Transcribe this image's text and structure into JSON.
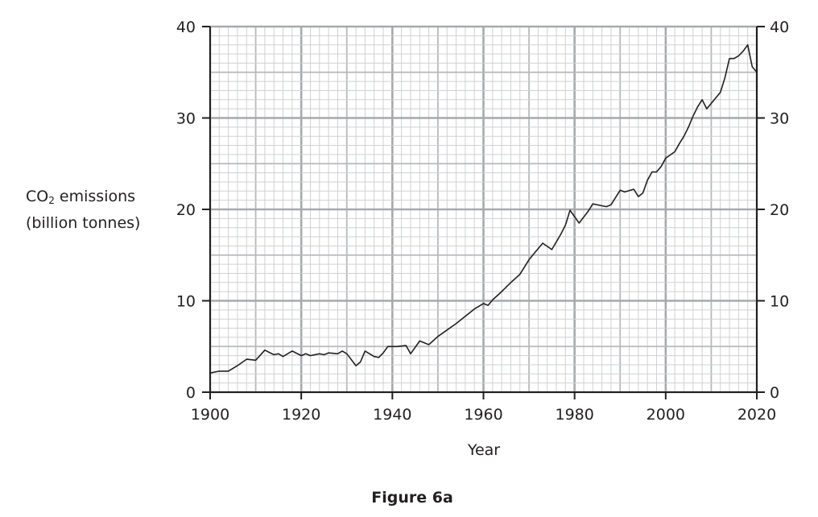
{
  "figure": {
    "caption": "Figure 6a"
  },
  "axes": {
    "xlabel": "Year",
    "ylabel_line1_pre": "CO",
    "ylabel_line1_sub": "2",
    "ylabel_line1_post": " emissions",
    "ylabel_line2": "(billion tonnes)"
  },
  "chart_data": {
    "type": "line",
    "title": "Figure 6a",
    "xlabel": "Year",
    "ylabel": "CO2 emissions (billion tonnes)",
    "xlim": [
      1900,
      2020
    ],
    "ylim": [
      0,
      40
    ],
    "x_ticks": [
      1900,
      1920,
      1940,
      1960,
      1980,
      2000,
      2020
    ],
    "y_ticks": [
      0,
      10,
      20,
      30,
      40
    ],
    "grid": true,
    "grid_minor_x_step": 2,
    "grid_minor_y_step": 1,
    "right_axis_duplicate": true,
    "legend": null,
    "series": [
      {
        "name": "CO2 emissions",
        "color": "#231f20",
        "x": [
          1900,
          1902,
          1904,
          1906,
          1908,
          1910,
          1912,
          1914,
          1915,
          1916,
          1918,
          1920,
          1921,
          1922,
          1924,
          1925,
          1926,
          1928,
          1929,
          1930,
          1932,
          1933,
          1934,
          1936,
          1937,
          1938,
          1939,
          1941,
          1943,
          1944,
          1946,
          1948,
          1950,
          1952,
          1954,
          1956,
          1958,
          1960,
          1961,
          1962,
          1964,
          1966,
          1968,
          1970,
          1972,
          1973,
          1975,
          1977,
          1978,
          1979,
          1981,
          1983,
          1984,
          1986,
          1987,
          1988,
          1990,
          1991,
          1993,
          1994,
          1995,
          1996,
          1997,
          1998,
          1999,
          2000,
          2002,
          2003,
          2004,
          2005,
          2006,
          2007,
          2008,
          2009,
          2011,
          2012,
          2013,
          2014,
          2015,
          2016,
          2017,
          2018,
          2019,
          2020
        ],
        "values": [
          2.1,
          2.3,
          2.3,
          2.9,
          3.6,
          3.5,
          4.6,
          4.1,
          4.2,
          3.9,
          4.5,
          4.0,
          4.2,
          4.0,
          4.2,
          4.1,
          4.3,
          4.2,
          4.5,
          4.2,
          2.9,
          3.3,
          4.5,
          3.9,
          3.8,
          4.3,
          5.0,
          5.0,
          5.1,
          4.2,
          5.6,
          5.2,
          6.1,
          6.8,
          7.5,
          8.3,
          9.1,
          9.7,
          9.5,
          10.1,
          11.0,
          12.0,
          12.9,
          14.5,
          15.7,
          16.3,
          15.6,
          17.3,
          18.3,
          19.9,
          18.5,
          19.8,
          20.6,
          20.4,
          20.3,
          20.5,
          22.1,
          21.9,
          22.2,
          21.4,
          21.8,
          23.2,
          24.1,
          24.1,
          24.7,
          25.6,
          26.3,
          27.2,
          28.0,
          29.0,
          30.2,
          31.2,
          32.0,
          31.0,
          32.2,
          32.8,
          34.4,
          36.5,
          36.5,
          36.8,
          37.3,
          38.0,
          35.6,
          35.0
        ]
      }
    ]
  }
}
